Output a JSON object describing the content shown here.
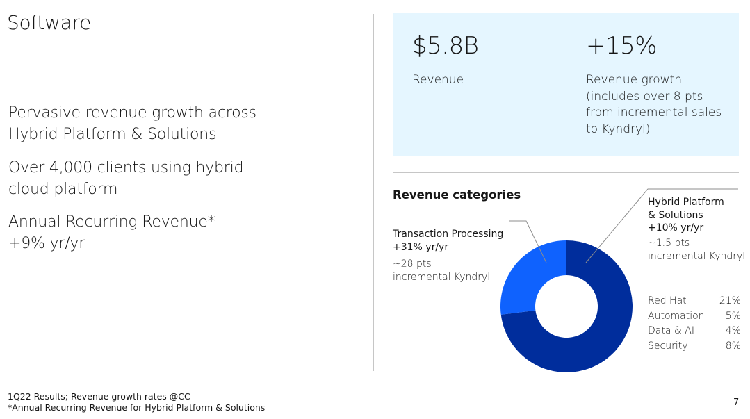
{
  "page_title": "Software",
  "bullets": [
    [
      "Pervasive revenue growth across",
      "Hybrid Platform & Solutions"
    ],
    [
      "Over 4,000 clients using hybrid",
      "cloud platform"
    ],
    [
      "Annual Recurring Revenue*",
      "+9% yr/yr"
    ]
  ],
  "kpis": {
    "revenue": {
      "value": "$5.8B",
      "label": "Revenue"
    },
    "growth": {
      "value": "+15%",
      "label_lines": [
        "Revenue growth",
        "(includes over 8 pts",
        "from incremental sales",
        "to Kyndryl)"
      ]
    }
  },
  "chart_data": {
    "type": "pie",
    "title": "Revenue categories",
    "donut": true,
    "categories": [
      "Hybrid Platform & Solutions",
      "Transaction Processing"
    ],
    "values": [
      73,
      27
    ],
    "colors": [
      "#002d9c",
      "#0f62fe"
    ],
    "annotations": [
      {
        "category": "Transaction Processing",
        "lines": [
          "Transaction Processing",
          "+31% yr/yr"
        ],
        "detail_lines": [
          "~28 pts",
          "incremental Kyndryl"
        ]
      },
      {
        "category": "Hybrid Platform & Solutions",
        "lines": [
          "Hybrid Platform",
          "& Solutions",
          "+10% yr/yr"
        ],
        "detail_lines": [
          "~1.5 pts",
          "incremental Kyndryl"
        ]
      }
    ],
    "sub_categories": [
      {
        "name": "Red Hat",
        "value": "21%"
      },
      {
        "name": "Automation",
        "value": "5%"
      },
      {
        "name": "Data & AI",
        "value": "4%"
      },
      {
        "name": "Security",
        "value": "8%"
      }
    ]
  },
  "footnotes": [
    "1Q22 Results; Revenue growth rates @CC",
    "*Annual Recurring Revenue for Hybrid Platform & Solutions"
  ],
  "page_number": "7"
}
